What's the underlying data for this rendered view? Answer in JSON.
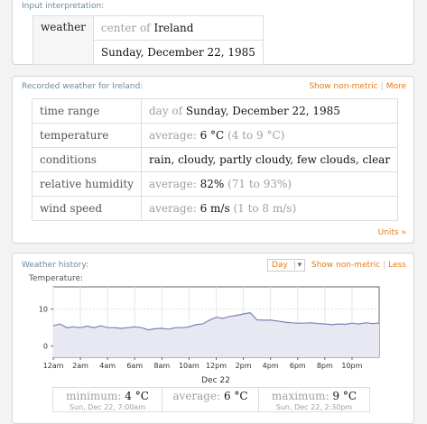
{
  "input_pod": {
    "title": "Input interpretation:",
    "label": "weather",
    "location_prefix": "center of",
    "location": "Ireland",
    "date": "Sunday, December 22, 1985"
  },
  "recorded_pod": {
    "title": "Recorded weather for Ireland:",
    "link_nonmetric": "Show non-metric",
    "link_more": "More",
    "units_link": "Units »",
    "rows": [
      {
        "label": "time range",
        "prefix": "day of",
        "value": "Sunday, December 22, 1985",
        "range": ""
      },
      {
        "label": "temperature",
        "prefix": "average:",
        "value": "6 °C",
        "range": "(4 to 9 °C)"
      },
      {
        "label": "conditions",
        "prefix": "",
        "value": "rain, cloudy, partly cloudy, few clouds, clear",
        "range": ""
      },
      {
        "label": "relative humidity",
        "prefix": "average:",
        "value": "82%",
        "range": "(71 to 93%)"
      },
      {
        "label": "wind speed",
        "prefix": "average:",
        "value": "6 m/s",
        "range": "(1 to 8 m/s)"
      }
    ]
  },
  "history_pod": {
    "title": "Weather history:",
    "unit_select": "Day",
    "link_nonmetric": "Show non-metric",
    "link_less": "Less",
    "stats": {
      "min_label": "minimum:",
      "min_value": "4 °C",
      "min_time": "Sun, Dec 22, 7:00am",
      "avg_label": "average:",
      "avg_value": "6 °C",
      "max_label": "maximum:",
      "max_value": "9 °C",
      "max_time": "Sun, Dec 22, 2:30pm"
    }
  },
  "chart_data": {
    "type": "line",
    "title": "Temperature:",
    "xlabel": "Dec 22",
    "ylabel": "",
    "x_ticks": [
      "12am",
      "2am",
      "4am",
      "6am",
      "8am",
      "10am",
      "12pm",
      "2pm",
      "4pm",
      "6pm",
      "8pm",
      "10pm"
    ],
    "y_ticks": [
      0,
      10
    ],
    "ylim": [
      -3,
      16
    ],
    "xlim": [
      0,
      24
    ],
    "color": "#7b83b6",
    "series": [
      {
        "x": [
          0,
          0.5,
          1,
          1.5,
          2,
          2.5,
          3,
          3.5,
          4,
          4.5,
          5,
          5.5,
          6,
          6.5,
          7,
          7.5,
          8,
          8.5,
          9,
          9.5,
          10,
          10.5,
          11,
          11.5,
          12,
          12.5,
          13,
          13.5,
          14,
          14.5,
          15,
          15.5,
          16,
          16.5,
          17,
          17.5,
          18,
          18.5,
          19,
          19.5,
          20,
          20.5,
          21,
          21.5,
          22,
          22.5,
          23,
          23.5,
          24
        ],
        "y": [
          5.5,
          6,
          5,
          5.2,
          5,
          5.4,
          5,
          5.5,
          5,
          5,
          4.8,
          5,
          5.2,
          5,
          4.4,
          4.7,
          4.8,
          4.6,
          5,
          5,
          5.2,
          5.8,
          6,
          7,
          7.8,
          7.5,
          8,
          8.3,
          8.7,
          9,
          7.1,
          7,
          7,
          6.8,
          6.5,
          6.3,
          6.2,
          6.2,
          6.3,
          6.1,
          6,
          5.8,
          6,
          5.9,
          6.2,
          6,
          6.3,
          6.1,
          6.2
        ]
      }
    ]
  }
}
